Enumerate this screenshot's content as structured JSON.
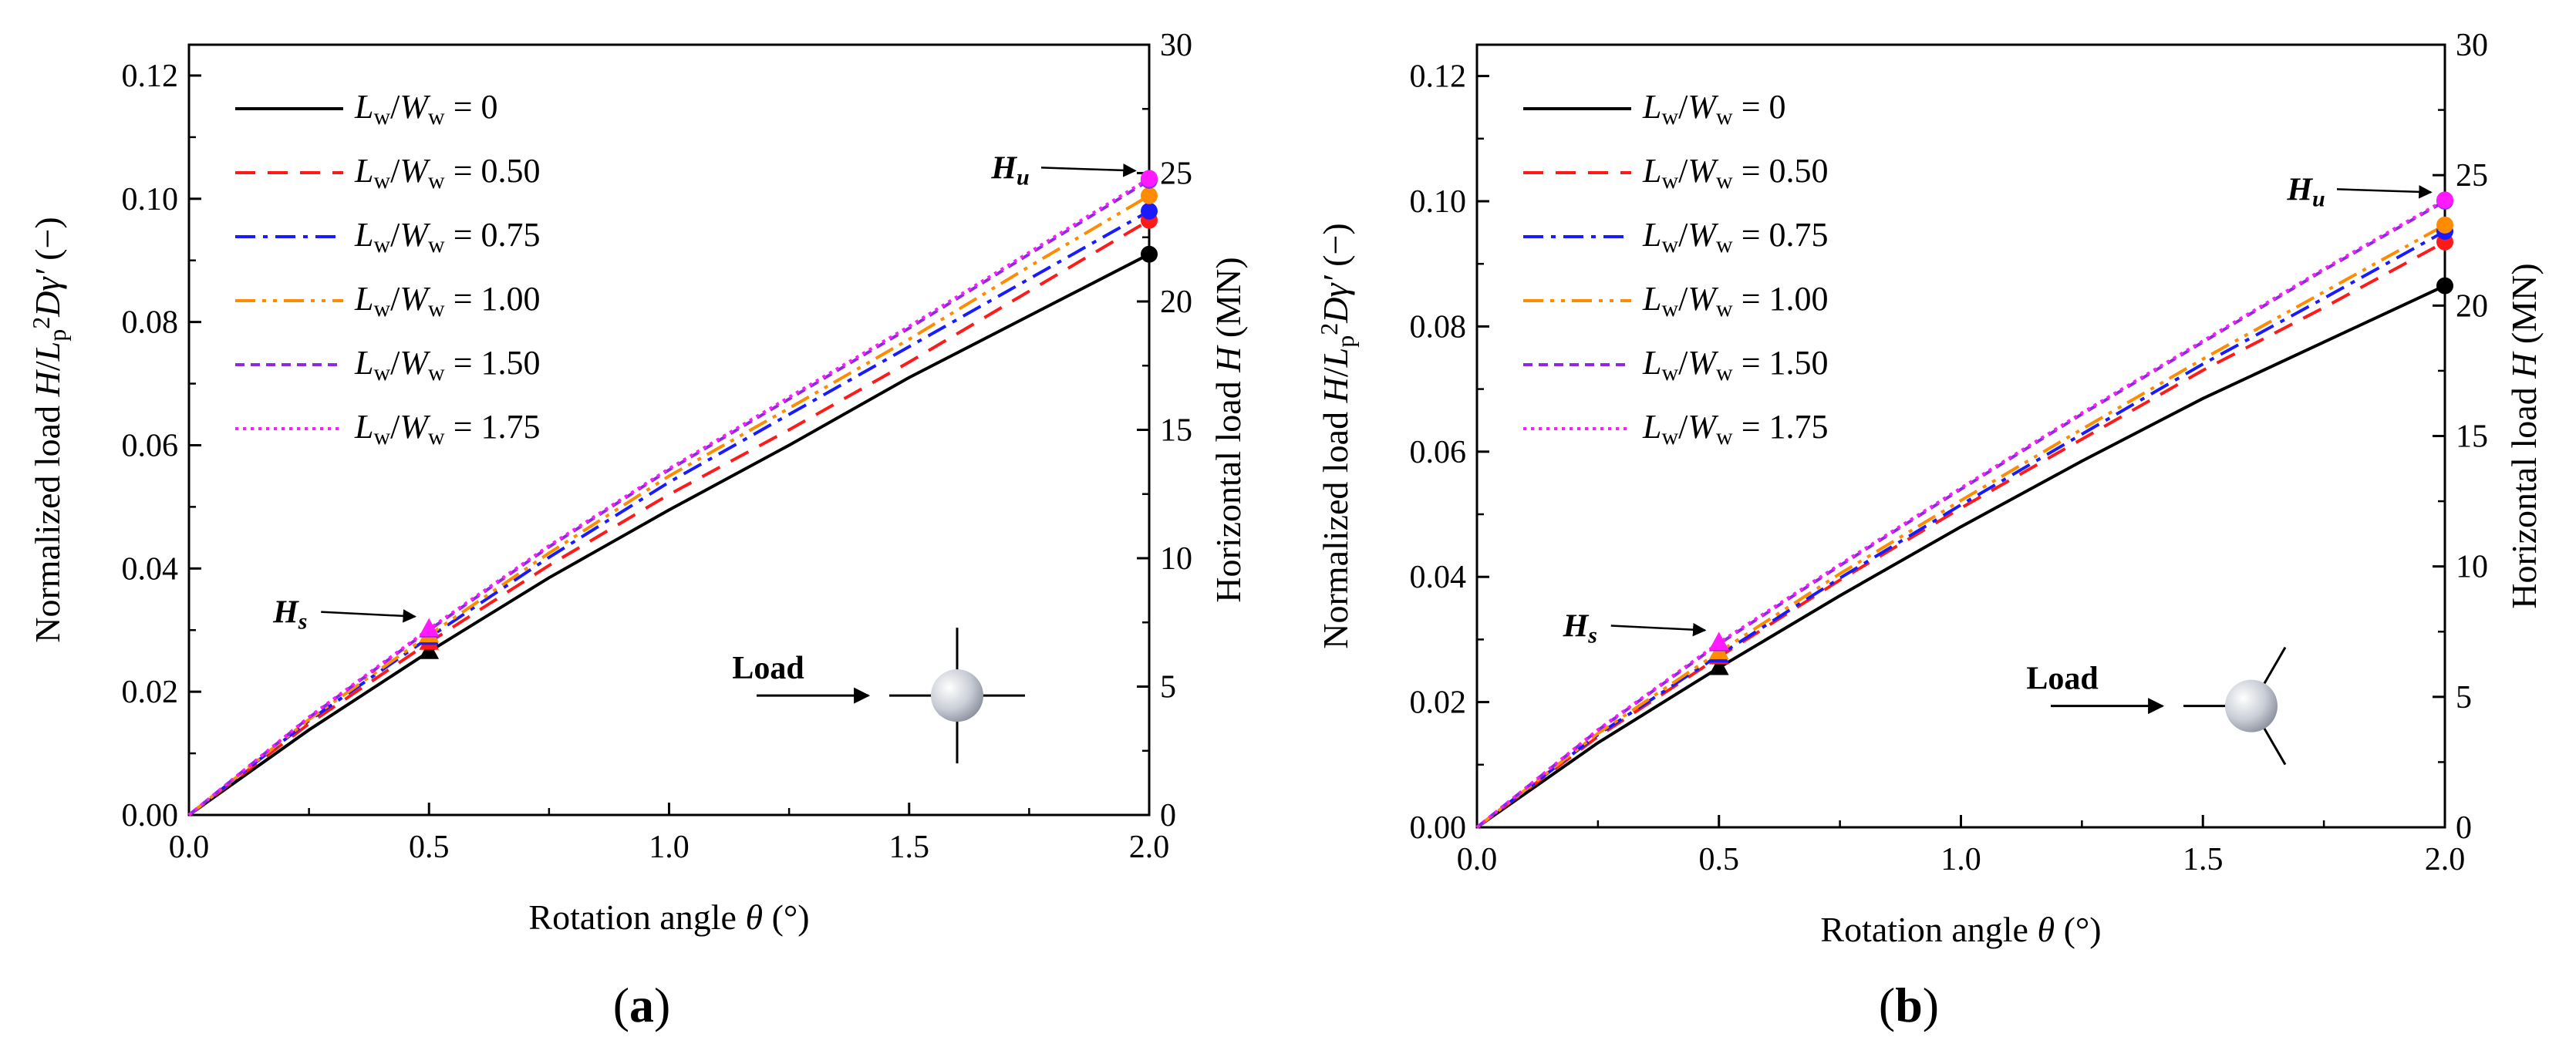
{
  "chart_data": [
    {
      "type": "line",
      "panel_label": "a",
      "xlabel": "Rotation angle θ (°)",
      "ylabel_left": "Normalized load H/Lp²Dγ′ (−)",
      "ylabel_right": "Horizontal load H (MN)",
      "xlim": [
        0,
        2.0
      ],
      "ylim": [
        0,
        0.125
      ],
      "ylim_right": [
        0,
        30
      ],
      "xticks": [
        "0.0",
        "0.5",
        "1.0",
        "1.5",
        "2.0"
      ],
      "yticks": [
        "0.00",
        "0.02",
        "0.04",
        "0.06",
        "0.08",
        "0.10",
        "0.12"
      ],
      "yticks_right": [
        "0",
        "5",
        "10",
        "15",
        "20",
        "25",
        "30"
      ],
      "legend_position": "top-left",
      "series": [
        {
          "name": "L_w/W_w = 0",
          "lhs": "L",
          "lhs_sub": "w",
          "mid": "/W",
          "mid_sub": "w",
          "rhs": " = 0",
          "color": "#000000",
          "dash": "",
          "x": [
            0,
            0.25,
            0.5,
            0.75,
            1.0,
            1.25,
            1.5,
            1.75,
            2.0
          ],
          "y": [
            0,
            0.0138,
            0.0265,
            0.0385,
            0.0495,
            0.06,
            0.071,
            0.081,
            0.091
          ],
          "hs": 0.0265,
          "hu": 0.091
        },
        {
          "name": "L_w/W_w = 0.50",
          "lhs": "L",
          "lhs_sub": "w",
          "mid": "/W",
          "mid_sub": "w",
          "rhs": " = 0.50",
          "color": "#ff1a1a",
          "dash": "26,16",
          "x": [
            0,
            0.25,
            0.5,
            0.75,
            1.0,
            1.25,
            1.5,
            1.75,
            2.0
          ],
          "y": [
            0,
            0.0148,
            0.028,
            0.0405,
            0.052,
            0.0625,
            0.0735,
            0.085,
            0.0965
          ],
          "hs": 0.028,
          "hu": 0.0965
        },
        {
          "name": "L_w/W_w = 0.75",
          "lhs": "L",
          "lhs_sub": "w",
          "mid": "/W",
          "mid_sub": "w",
          "rhs": " = 0.75",
          "color": "#1a1aff",
          "dash": "26,10,6,10",
          "x": [
            0,
            0.25,
            0.5,
            0.75,
            1.0,
            1.25,
            1.5,
            1.75,
            2.0
          ],
          "y": [
            0,
            0.0153,
            0.0288,
            0.0418,
            0.054,
            0.065,
            0.076,
            0.087,
            0.098
          ],
          "hs": 0.0288,
          "hu": 0.098
        },
        {
          "name": "L_w/W_w = 1.00",
          "lhs": "L",
          "lhs_sub": "w",
          "mid": "/W",
          "mid_sub": "w",
          "rhs": " = 1.00",
          "color": "#ff8c00",
          "dash": "26,9,5,9,5,9",
          "x": [
            0,
            0.25,
            0.5,
            0.75,
            1.0,
            1.25,
            1.5,
            1.75,
            2.0
          ],
          "y": [
            0,
            0.0155,
            0.0292,
            0.0425,
            0.055,
            0.066,
            0.0772,
            0.089,
            0.1005
          ],
          "hs": 0.0292,
          "hu": 0.1005
        },
        {
          "name": "L_w/W_w = 1.50",
          "lhs": "L",
          "lhs_sub": "w",
          "mid": "/W",
          "mid_sub": "w",
          "rhs": " = 1.50",
          "color": "#8a2be2",
          "dash": "12,8",
          "x": [
            0,
            0.25,
            0.5,
            0.75,
            1.0,
            1.25,
            1.5,
            1.75,
            2.0
          ],
          "y": [
            0,
            0.0158,
            0.03,
            0.0435,
            0.056,
            0.0675,
            0.079,
            0.091,
            0.103
          ],
          "hs": 0.03,
          "hu": 0.103
        },
        {
          "name": "L_w/W_w = 1.75",
          "lhs": "L",
          "lhs_sub": "w",
          "mid": "/W",
          "mid_sub": "w",
          "rhs": " = 1.75",
          "color": "#ff1aff",
          "dash": "4,6",
          "x": [
            0,
            0.25,
            0.5,
            0.75,
            1.0,
            1.25,
            1.5,
            1.75,
            2.0
          ],
          "y": [
            0,
            0.0159,
            0.0302,
            0.0437,
            0.0562,
            0.0678,
            0.0793,
            0.0913,
            0.1033
          ],
          "hs": 0.0302,
          "hu": 0.1033
        }
      ],
      "annotations": {
        "hs": "H",
        "hs_sub": "s",
        "hu": "H",
        "hu_sub": "u",
        "load": "Load"
      },
      "inset": "cross"
    },
    {
      "type": "line",
      "panel_label": "b",
      "xlabel": "Rotation angle θ (°)",
      "ylabel_left": "Normalized load H/Lp²Dγ′ (−)",
      "ylabel_right": "Horizontal load H (MN)",
      "xlim": [
        0,
        2.0
      ],
      "ylim": [
        0,
        0.125
      ],
      "ylim_right": [
        0,
        30
      ],
      "xticks": [
        "0.0",
        "0.5",
        "1.0",
        "1.5",
        "2.0"
      ],
      "yticks": [
        "0.00",
        "0.02",
        "0.04",
        "0.06",
        "0.08",
        "0.10",
        "0.12"
      ],
      "yticks_right": [
        "0",
        "5",
        "10",
        "15",
        "20",
        "25",
        "30"
      ],
      "legend_position": "top-left",
      "series": [
        {
          "name": "L_w/W_w = 0",
          "lhs": "L",
          "lhs_sub": "w",
          "mid": "/W",
          "mid_sub": "w",
          "rhs": " = 0",
          "color": "#000000",
          "dash": "",
          "x": [
            0,
            0.25,
            0.5,
            0.75,
            1.0,
            1.25,
            1.5,
            1.75,
            2.0
          ],
          "y": [
            0,
            0.0135,
            0.0255,
            0.037,
            0.048,
            0.0585,
            0.0685,
            0.0775,
            0.0865
          ],
          "hs": 0.0255,
          "hu": 0.0865
        },
        {
          "name": "L_w/W_w = 0.50",
          "lhs": "L",
          "lhs_sub": "w",
          "mid": "/W",
          "mid_sub": "w",
          "rhs": " = 0.50",
          "color": "#ff1a1a",
          "dash": "26,16",
          "x": [
            0,
            0.25,
            0.5,
            0.75,
            1.0,
            1.25,
            1.5,
            1.75,
            2.0
          ],
          "y": [
            0,
            0.0145,
            0.0272,
            0.0395,
            0.051,
            0.062,
            0.073,
            0.083,
            0.0935
          ],
          "hs": 0.0272,
          "hu": 0.0935
        },
        {
          "name": "L_w/W_w = 0.75",
          "lhs": "L",
          "lhs_sub": "w",
          "mid": "/W",
          "mid_sub": "w",
          "rhs": " = 0.75",
          "color": "#1a1aff",
          "dash": "26,10,6,10",
          "x": [
            0,
            0.25,
            0.5,
            0.75,
            1.0,
            1.25,
            1.5,
            1.75,
            2.0
          ],
          "y": [
            0,
            0.0148,
            0.0275,
            0.0398,
            0.0515,
            0.0628,
            0.074,
            0.0845,
            0.0952
          ],
          "hs": 0.0275,
          "hu": 0.0952
        },
        {
          "name": "L_w/W_w = 1.00",
          "lhs": "L",
          "lhs_sub": "w",
          "mid": "/W",
          "mid_sub": "w",
          "rhs": " = 1.00",
          "color": "#ff8c00",
          "dash": "26,9,5,9,5,9",
          "x": [
            0,
            0.25,
            0.5,
            0.75,
            1.0,
            1.25,
            1.5,
            1.75,
            2.0
          ],
          "y": [
            0,
            0.015,
            0.028,
            0.0405,
            0.0522,
            0.0636,
            0.0748,
            0.0855,
            0.0962
          ],
          "hs": 0.028,
          "hu": 0.0962
        },
        {
          "name": "L_w/W_w = 1.50",
          "lhs": "L",
          "lhs_sub": "w",
          "mid": "/W",
          "mid_sub": "w",
          "rhs": " = 1.50",
          "color": "#8a2be2",
          "dash": "12,8",
          "x": [
            0,
            0.25,
            0.5,
            0.75,
            1.0,
            1.25,
            1.5,
            1.75,
            2.0
          ],
          "y": [
            0,
            0.0155,
            0.0293,
            0.0418,
            0.054,
            0.066,
            0.0775,
            0.089,
            0.1
          ],
          "hs": 0.0293,
          "hu": 0.1
        },
        {
          "name": "L_w/W_w = 1.75",
          "lhs": "L",
          "lhs_sub": "w",
          "mid": "/W",
          "mid_sub": "w",
          "rhs": " = 1.75",
          "color": "#ff1aff",
          "dash": "4,6",
          "x": [
            0,
            0.25,
            0.5,
            0.75,
            1.0,
            1.25,
            1.5,
            1.75,
            2.0
          ],
          "y": [
            0,
            0.0156,
            0.0295,
            0.042,
            0.0542,
            0.0662,
            0.0777,
            0.0892,
            0.1002
          ],
          "hs": 0.0295,
          "hu": 0.1002
        }
      ],
      "annotations": {
        "hs": "H",
        "hs_sub": "s",
        "hu": "H",
        "hu_sub": "u",
        "load": "Load"
      },
      "inset": "tripod"
    }
  ]
}
